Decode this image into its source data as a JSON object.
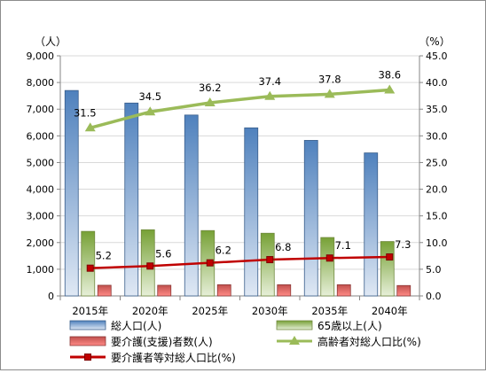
{
  "chart_data": {
    "type": "bar",
    "categories": [
      "2015年",
      "2020年",
      "2025年",
      "2030年",
      "2035年",
      "2040年"
    ],
    "y_left": {
      "unit": "（人）",
      "min": 0,
      "max": 9000,
      "step": 1000,
      "ticks": [
        "0",
        "1,000",
        "2,000",
        "3,000",
        "4,000",
        "5,000",
        "6,000",
        "7,000",
        "8,000",
        "9,000"
      ]
    },
    "y_right": {
      "unit": "（%）",
      "min": 0,
      "max": 45,
      "step": 5,
      "ticks": [
        "0.0",
        "5.0",
        "10.0",
        "15.0",
        "20.0",
        "25.0",
        "30.0",
        "35.0",
        "40.0",
        "45.0"
      ]
    },
    "grid": true,
    "legend_position": "bottom",
    "series": [
      {
        "name": "総人口(人)",
        "kind": "bar",
        "axis": "left",
        "color": "#4f81bd",
        "values": [
          7700,
          7230,
          6780,
          6300,
          5830,
          5360
        ]
      },
      {
        "name": "65歳以上(人)",
        "kind": "bar",
        "axis": "left",
        "color": "#9bbb59",
        "values": [
          2420,
          2480,
          2450,
          2350,
          2190,
          2040
        ]
      },
      {
        "name": "要介護(支援)者数(人)",
        "kind": "bar",
        "axis": "left",
        "color": "#c0504d",
        "values": [
          400,
          400,
          420,
          420,
          420,
          390
        ]
      },
      {
        "name": "高齢者対総人口比(%)",
        "kind": "line",
        "axis": "right",
        "color": "#9bbb59",
        "marker": "triangle",
        "values": [
          31.5,
          34.5,
          36.2,
          37.4,
          37.8,
          38.6
        ],
        "labels": [
          "31.5",
          "34.5",
          "36.2",
          "37.4",
          "37.8",
          "38.6"
        ]
      },
      {
        "name": "要介護者等対総人口比(%)",
        "kind": "line",
        "axis": "right",
        "color": "#c00000",
        "marker": "square",
        "values": [
          5.2,
          5.6,
          6.2,
          6.8,
          7.1,
          7.3
        ],
        "labels": [
          "5.2",
          "5.6",
          "6.2",
          "6.8",
          "7.1",
          "7.3"
        ]
      }
    ]
  }
}
